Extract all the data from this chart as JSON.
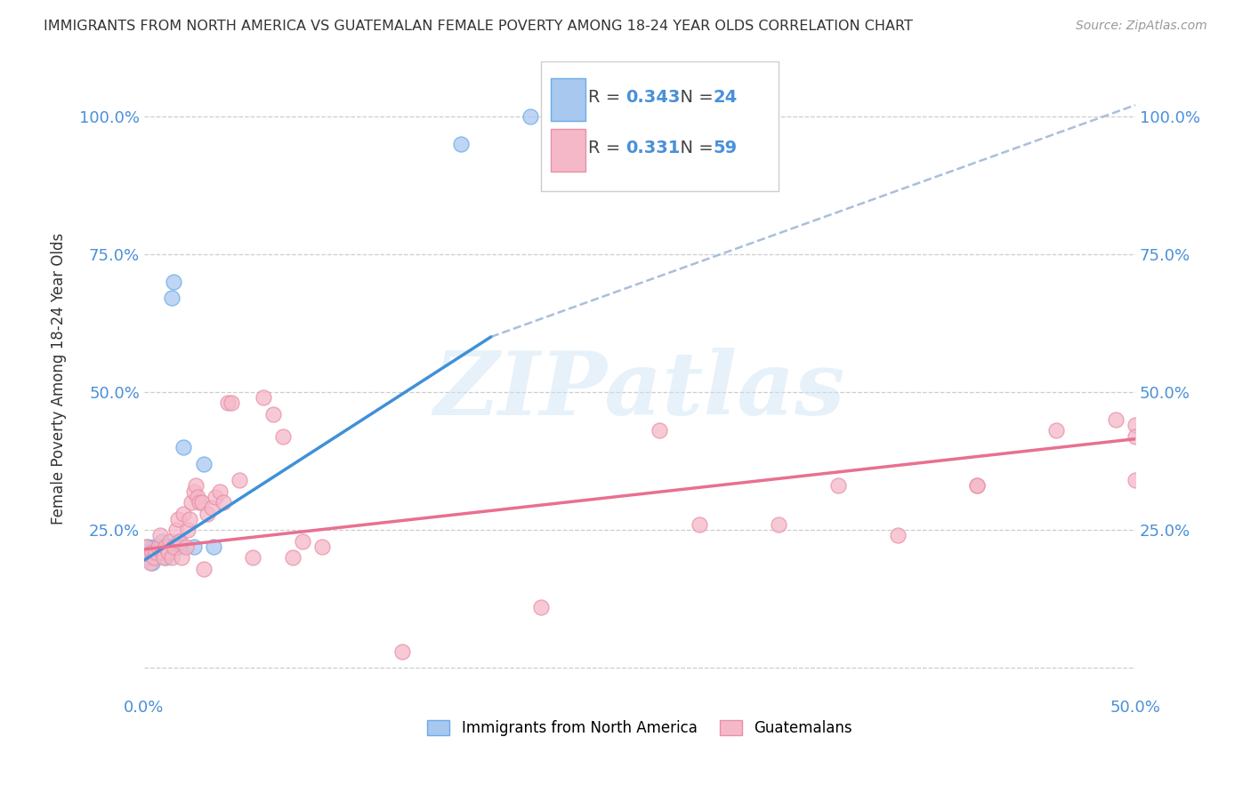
{
  "title": "IMMIGRANTS FROM NORTH AMERICA VS GUATEMALAN FEMALE POVERTY AMONG 18-24 YEAR OLDS CORRELATION CHART",
  "source": "Source: ZipAtlas.com",
  "ylabel": "Female Poverty Among 18-24 Year Olds",
  "xlim": [
    0.0,
    0.5
  ],
  "ylim": [
    -0.05,
    1.1
  ],
  "xtick_positions": [
    0.0,
    0.05,
    0.1,
    0.15,
    0.2,
    0.25,
    0.3,
    0.35,
    0.4,
    0.45,
    0.5
  ],
  "xtick_labels": [
    "0.0%",
    "",
    "",
    "",
    "",
    "",
    "",
    "",
    "",
    "",
    "50.0%"
  ],
  "ytick_positions": [
    0.0,
    0.25,
    0.5,
    0.75,
    1.0
  ],
  "ytick_labels": [
    "",
    "25.0%",
    "50.0%",
    "75.0%",
    "100.0%"
  ],
  "background_color": "#ffffff",
  "watermark": "ZIPatlas",
  "blue_fill_color": "#a8c8f0",
  "pink_fill_color": "#f5b8c8",
  "blue_edge_color": "#6aace8",
  "pink_edge_color": "#e890a8",
  "blue_line_color": "#4090d8",
  "pink_line_color": "#e87090",
  "dashed_line_color": "#a0b8d8",
  "R_blue": 0.343,
  "N_blue": 24,
  "R_pink": 0.331,
  "N_pink": 59,
  "blue_scatter_x": [
    0.001,
    0.002,
    0.003,
    0.004,
    0.005,
    0.006,
    0.007,
    0.008,
    0.009,
    0.01,
    0.011,
    0.012,
    0.013,
    0.014,
    0.015,
    0.016,
    0.017,
    0.018,
    0.02,
    0.025,
    0.03,
    0.035,
    0.16,
    0.195
  ],
  "blue_scatter_y": [
    0.21,
    0.22,
    0.2,
    0.19,
    0.22,
    0.21,
    0.22,
    0.21,
    0.23,
    0.22,
    0.2,
    0.22,
    0.21,
    0.67,
    0.7,
    0.22,
    0.23,
    0.22,
    0.4,
    0.22,
    0.37,
    0.22,
    0.95,
    1.0
  ],
  "pink_scatter_x": [
    0.001,
    0.002,
    0.003,
    0.004,
    0.005,
    0.006,
    0.007,
    0.008,
    0.009,
    0.01,
    0.011,
    0.012,
    0.013,
    0.014,
    0.015,
    0.016,
    0.017,
    0.018,
    0.019,
    0.02,
    0.021,
    0.022,
    0.023,
    0.024,
    0.025,
    0.026,
    0.027,
    0.028,
    0.029,
    0.03,
    0.032,
    0.034,
    0.036,
    0.038,
    0.04,
    0.042,
    0.044,
    0.048,
    0.055,
    0.06,
    0.065,
    0.07,
    0.075,
    0.08,
    0.09,
    0.13,
    0.2,
    0.26,
    0.32,
    0.38,
    0.42,
    0.46,
    0.49,
    0.5,
    0.5,
    0.5,
    0.42,
    0.35,
    0.28
  ],
  "pink_scatter_y": [
    0.22,
    0.2,
    0.19,
    0.21,
    0.2,
    0.21,
    0.22,
    0.24,
    0.21,
    0.2,
    0.22,
    0.21,
    0.23,
    0.2,
    0.22,
    0.25,
    0.27,
    0.23,
    0.2,
    0.28,
    0.22,
    0.25,
    0.27,
    0.3,
    0.32,
    0.33,
    0.31,
    0.3,
    0.3,
    0.18,
    0.28,
    0.29,
    0.31,
    0.32,
    0.3,
    0.48,
    0.48,
    0.34,
    0.2,
    0.49,
    0.46,
    0.42,
    0.2,
    0.23,
    0.22,
    0.03,
    0.11,
    0.43,
    0.26,
    0.24,
    0.33,
    0.43,
    0.45,
    0.44,
    0.42,
    0.34,
    0.33,
    0.33,
    0.26
  ],
  "blue_solid_line_x": [
    0.0,
    0.175
  ],
  "blue_solid_line_y": [
    0.195,
    0.6
  ],
  "blue_dashed_line_x": [
    0.175,
    0.5
  ],
  "blue_dashed_line_y": [
    0.6,
    1.02
  ],
  "pink_line_x": [
    0.0,
    0.5
  ],
  "pink_line_y": [
    0.215,
    0.415
  ],
  "grid_color": "#c8c8c8",
  "label_color": "#4a90d9",
  "title_color": "#333333",
  "source_color": "#999999"
}
